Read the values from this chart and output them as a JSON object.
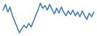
{
  "values": [
    2.0,
    3.5,
    1.5,
    2.8,
    0.5,
    -1.0,
    -2.5,
    -4.0,
    -3.0,
    -2.0,
    -2.8,
    -1.5,
    -2.5,
    -1.0,
    0.5,
    2.0,
    3.8,
    2.5,
    3.2,
    2.0,
    3.5,
    2.2,
    1.0,
    2.5,
    1.2,
    2.8,
    1.5,
    0.5,
    1.8,
    0.8,
    2.0,
    0.5,
    1.5,
    0.2,
    1.8,
    0.5,
    -0.5,
    1.2,
    0.2,
    1.5
  ],
  "line_color": "#3a7ebf",
  "line_width": 1.0,
  "background_color": "#ffffff"
}
